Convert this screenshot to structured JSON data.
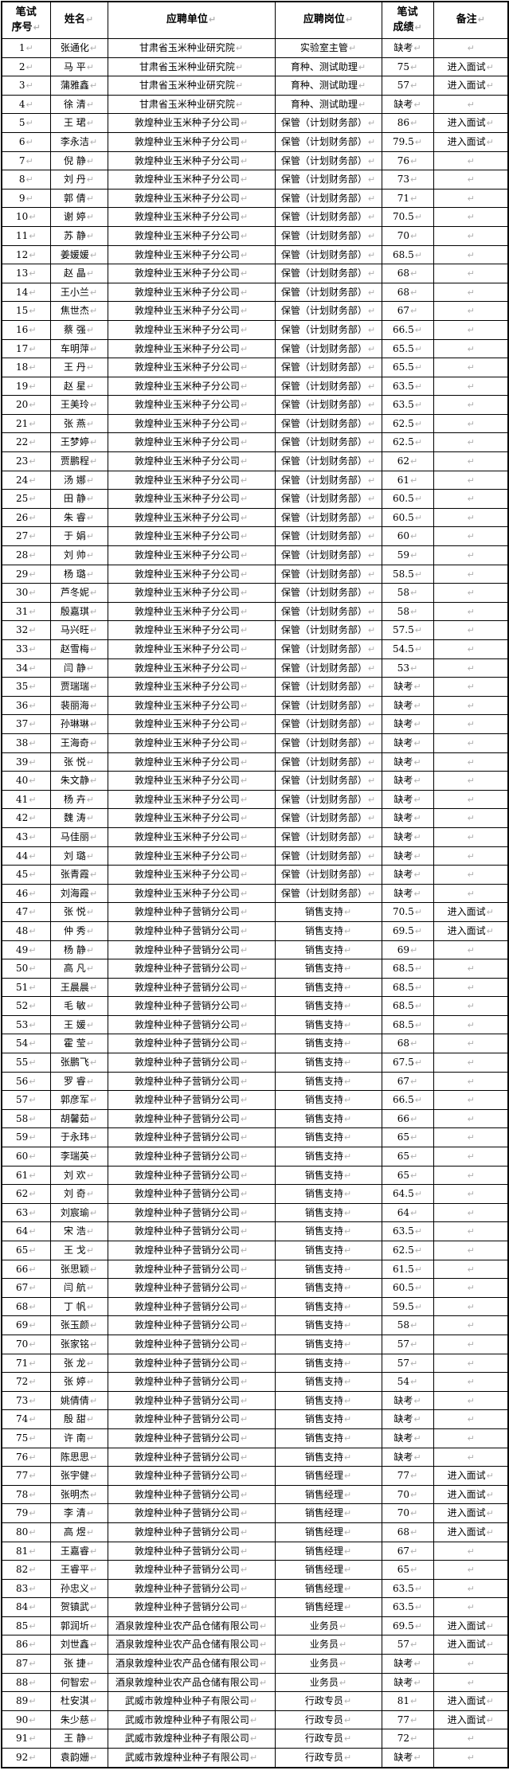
{
  "table": {
    "paragraph_mark": "↵",
    "headers": [
      "笔试\n序号",
      "姓名",
      "应聘单位",
      "应聘岗位",
      "笔试\n成绩",
      "备注"
    ],
    "column_names": [
      "cell-exam-number",
      "cell-name",
      "cell-unit",
      "cell-position",
      "cell-score",
      "cell-remark"
    ],
    "colors": {
      "border": "#000000",
      "text": "#000000",
      "paragraph_mark": "#b0b0b0",
      "background": "#ffffff"
    },
    "rows": [
      [
        "1",
        "张通化",
        "甘肃省玉米种业研究院",
        "实验室主管",
        "缺考",
        ""
      ],
      [
        "2",
        "马 平",
        "甘肃省玉米种业研究院",
        "育种、测试助理",
        "75",
        "进入面试"
      ],
      [
        "3",
        "蒲雅鑫",
        "甘肃省玉米种业研究院",
        "育种、测试助理",
        "57",
        "进入面试"
      ],
      [
        "4",
        "徐 清",
        "甘肃省玉米种业研究院",
        "育种、测试助理",
        "缺考",
        ""
      ],
      [
        "5",
        "王 珺",
        "敦煌种业玉米种子分公司",
        "保管（计划财务部）",
        "86",
        "进入面试"
      ],
      [
        "6",
        "李永洁",
        "敦煌种业玉米种子分公司",
        "保管（计划财务部）",
        "79.5",
        "进入面试"
      ],
      [
        "7",
        "倪 静",
        "敦煌种业玉米种子分公司",
        "保管（计划财务部）",
        "76",
        ""
      ],
      [
        "8",
        "刘 丹",
        "敦煌种业玉米种子分公司",
        "保管（计划财务部）",
        "73",
        ""
      ],
      [
        "9",
        "郭 倩",
        "敦煌种业玉米种子分公司",
        "保管（计划财务部）",
        "71",
        ""
      ],
      [
        "10",
        "谢 婷",
        "敦煌种业玉米种子分公司",
        "保管（计划财务部）",
        "70.5",
        ""
      ],
      [
        "11",
        "苏 静",
        "敦煌种业玉米种子分公司",
        "保管（计划财务部）",
        "70",
        ""
      ],
      [
        "12",
        "姜媛媛",
        "敦煌种业玉米种子分公司",
        "保管（计划财务部）",
        "68.5",
        ""
      ],
      [
        "13",
        "赵 晶",
        "敦煌种业玉米种子分公司",
        "保管（计划财务部）",
        "68",
        ""
      ],
      [
        "14",
        "王小兰",
        "敦煌种业玉米种子分公司",
        "保管（计划财务部）",
        "68",
        ""
      ],
      [
        "15",
        "焦世杰",
        "敦煌种业玉米种子分公司",
        "保管（计划财务部）",
        "67",
        ""
      ],
      [
        "16",
        "蔡 强",
        "敦煌种业玉米种子分公司",
        "保管（计划财务部）",
        "66.5",
        ""
      ],
      [
        "17",
        "车明萍",
        "敦煌种业玉米种子分公司",
        "保管（计划财务部）",
        "65.5",
        ""
      ],
      [
        "18",
        "王 丹",
        "敦煌种业玉米种子分公司",
        "保管（计划财务部）",
        "65.5",
        ""
      ],
      [
        "19",
        "赵 星",
        "敦煌种业玉米种子分公司",
        "保管（计划财务部）",
        "63.5",
        ""
      ],
      [
        "20",
        "王美玲",
        "敦煌种业玉米种子分公司",
        "保管（计划财务部）",
        "63.5",
        ""
      ],
      [
        "21",
        "张 燕",
        "敦煌种业玉米种子分公司",
        "保管（计划财务部）",
        "62.5",
        ""
      ],
      [
        "22",
        "王梦婷",
        "敦煌种业玉米种子分公司",
        "保管（计划财务部）",
        "62.5",
        ""
      ],
      [
        "23",
        "贾鹏程",
        "敦煌种业玉米种子分公司",
        "保管（计划财务部）",
        "62",
        ""
      ],
      [
        "24",
        "汤 娜",
        "敦煌种业玉米种子分公司",
        "保管（计划财务部）",
        "61",
        ""
      ],
      [
        "25",
        "田 静",
        "敦煌种业玉米种子分公司",
        "保管（计划财务部）",
        "60.5",
        ""
      ],
      [
        "26",
        "朱 睿",
        "敦煌种业玉米种子分公司",
        "保管（计划财务部）",
        "60.5",
        ""
      ],
      [
        "27",
        "于 娟",
        "敦煌种业玉米种子分公司",
        "保管（计划财务部）",
        "60",
        ""
      ],
      [
        "28",
        "刘 帅",
        "敦煌种业玉米种子分公司",
        "保管（计划财务部）",
        "59",
        ""
      ],
      [
        "29",
        "杨 璐",
        "敦煌种业玉米种子分公司",
        "保管（计划财务部）",
        "58.5",
        ""
      ],
      [
        "30",
        "芦冬妮",
        "敦煌种业玉米种子分公司",
        "保管（计划财务部）",
        "58",
        ""
      ],
      [
        "31",
        "殷嘉琪",
        "敦煌种业玉米种子分公司",
        "保管（计划财务部）",
        "58",
        ""
      ],
      [
        "32",
        "马兴旺",
        "敦煌种业玉米种子分公司",
        "保管（计划财务部）",
        "57.5",
        ""
      ],
      [
        "33",
        "赵雪梅",
        "敦煌种业玉米种子分公司",
        "保管（计划财务部）",
        "54.5",
        ""
      ],
      [
        "34",
        "闫 静",
        "敦煌种业玉米种子分公司",
        "保管（计划财务部）",
        "53",
        ""
      ],
      [
        "35",
        "贾瑞瑞",
        "敦煌种业玉米种子分公司",
        "保管（计划财务部）",
        "缺考",
        ""
      ],
      [
        "36",
        "裴丽海",
        "敦煌种业玉米种子分公司",
        "保管（计划财务部）",
        "缺考",
        ""
      ],
      [
        "37",
        "孙琳琳",
        "敦煌种业玉米种子分公司",
        "保管（计划财务部）",
        "缺考",
        ""
      ],
      [
        "38",
        "王海奇",
        "敦煌种业玉米种子分公司",
        "保管（计划财务部）",
        "缺考",
        ""
      ],
      [
        "39",
        "张 悦",
        "敦煌种业玉米种子分公司",
        "保管（计划财务部）",
        "缺考",
        ""
      ],
      [
        "40",
        "朱文静",
        "敦煌种业玉米种子分公司",
        "保管（计划财务部）",
        "缺考",
        ""
      ],
      [
        "41",
        "杨 卉",
        "敦煌种业玉米种子分公司",
        "保管（计划财务部）",
        "缺考",
        ""
      ],
      [
        "42",
        "魏 涛",
        "敦煌种业玉米种子分公司",
        "保管（计划财务部）",
        "缺考",
        ""
      ],
      [
        "43",
        "马佳丽",
        "敦煌种业玉米种子分公司",
        "保管（计划财务部）",
        "缺考",
        ""
      ],
      [
        "44",
        "刘 璐",
        "敦煌种业玉米种子分公司",
        "保管（计划财务部）",
        "缺考",
        ""
      ],
      [
        "45",
        "张青霞",
        "敦煌种业玉米种子分公司",
        "保管（计划财务部）",
        "缺考",
        ""
      ],
      [
        "46",
        "刘海霞",
        "敦煌种业玉米种子分公司",
        "保管（计划财务部）",
        "缺考",
        ""
      ],
      [
        "47",
        "张 悦",
        "敦煌种业种子营销分公司",
        "销售支持",
        "70.5",
        "进入面试"
      ],
      [
        "48",
        "仲 秀",
        "敦煌种业种子营销分公司",
        "销售支持",
        "69.5",
        "进入面试"
      ],
      [
        "49",
        "杨 静",
        "敦煌种业种子营销分公司",
        "销售支持",
        "69",
        ""
      ],
      [
        "50",
        "高 凡",
        "敦煌种业种子营销分公司",
        "销售支持",
        "68.5",
        ""
      ],
      [
        "51",
        "王晨晨",
        "敦煌种业种子营销分公司",
        "销售支持",
        "68.5",
        ""
      ],
      [
        "52",
        "毛 敏",
        "敦煌种业种子营销分公司",
        "销售支持",
        "68.5",
        ""
      ],
      [
        "53",
        "王 媛",
        "敦煌种业种子营销分公司",
        "销售支持",
        "68.5",
        ""
      ],
      [
        "54",
        "霍 莹",
        "敦煌种业种子营销分公司",
        "销售支持",
        "68",
        ""
      ],
      [
        "55",
        "张鹏飞",
        "敦煌种业种子营销分公司",
        "销售支持",
        "67.5",
        ""
      ],
      [
        "56",
        "罗 睿",
        "敦煌种业种子营销分公司",
        "销售支持",
        "67",
        ""
      ],
      [
        "57",
        "郭彦军",
        "敦煌种业种子营销分公司",
        "销售支持",
        "66.5",
        ""
      ],
      [
        "58",
        "胡馨茹",
        "敦煌种业种子营销分公司",
        "销售支持",
        "66",
        ""
      ],
      [
        "59",
        "于永玮",
        "敦煌种业种子营销分公司",
        "销售支持",
        "65",
        ""
      ],
      [
        "60",
        "李瑞英",
        "敦煌种业种子营销分公司",
        "销售支持",
        "65",
        ""
      ],
      [
        "61",
        "刘 欢",
        "敦煌种业种子营销分公司",
        "销售支持",
        "65",
        ""
      ],
      [
        "62",
        "刘 奇",
        "敦煌种业种子营销分公司",
        "销售支持",
        "64.5",
        ""
      ],
      [
        "63",
        "刘宸瑜",
        "敦煌种业种子营销分公司",
        "销售支持",
        "64",
        ""
      ],
      [
        "64",
        "宋 浩",
        "敦煌种业种子营销分公司",
        "销售支持",
        "63.5",
        ""
      ],
      [
        "65",
        "王 戈",
        "敦煌种业种子营销分公司",
        "销售支持",
        "62.5",
        ""
      ],
      [
        "66",
        "张思颖",
        "敦煌种业种子营销分公司",
        "销售支持",
        "61.5",
        ""
      ],
      [
        "67",
        "闫 航",
        "敦煌种业种子营销分公司",
        "销售支持",
        "60.5",
        ""
      ],
      [
        "68",
        "丁 帆",
        "敦煌种业种子营销分公司",
        "销售支持",
        "59.5",
        ""
      ],
      [
        "69",
        "张玉颜",
        "敦煌种业种子营销分公司",
        "销售支持",
        "58",
        ""
      ],
      [
        "70",
        "张家铭",
        "敦煌种业种子营销分公司",
        "销售支持",
        "57",
        ""
      ],
      [
        "71",
        "张 龙",
        "敦煌种业种子营销分公司",
        "销售支持",
        "57",
        ""
      ],
      [
        "72",
        "张 婷",
        "敦煌种业种子营销分公司",
        "销售支持",
        "54",
        ""
      ],
      [
        "73",
        "姚倩倩",
        "敦煌种业种子营销分公司",
        "销售支持",
        "缺考",
        ""
      ],
      [
        "74",
        "殷 甜",
        "敦煌种业种子营销分公司",
        "销售支持",
        "缺考",
        ""
      ],
      [
        "75",
        "许 南",
        "敦煌种业种子营销分公司",
        "销售支持",
        "缺考",
        ""
      ],
      [
        "76",
        "陈思思",
        "敦煌种业种子营销分公司",
        "销售支持",
        "缺考",
        ""
      ],
      [
        "77",
        "张宇健",
        "敦煌种业种子营销分公司",
        "销售经理",
        "77",
        "进入面试"
      ],
      [
        "78",
        "张明杰",
        "敦煌种业种子营销分公司",
        "销售经理",
        "70",
        "进入面试"
      ],
      [
        "79",
        "李 清",
        "敦煌种业种子营销分公司",
        "销售经理",
        "70",
        "进入面试"
      ],
      [
        "80",
        "高 煜",
        "敦煌种业种子营销分公司",
        "销售经理",
        "68",
        "进入面试"
      ],
      [
        "81",
        "王嘉睿",
        "敦煌种业种子营销分公司",
        "销售经理",
        "67",
        ""
      ],
      [
        "82",
        "王睿平",
        "敦煌种业种子营销分公司",
        "销售经理",
        "65",
        ""
      ],
      [
        "83",
        "孙忠义",
        "敦煌种业种子营销分公司",
        "销售经理",
        "63.5",
        ""
      ],
      [
        "84",
        "贺镇武",
        "敦煌种业种子营销分公司",
        "销售经理",
        "63.5",
        ""
      ],
      [
        "85",
        "郭润圻",
        "酒泉敦煌种业农产品仓储有限公司",
        "业务员",
        "69.5",
        "进入面试"
      ],
      [
        "86",
        "刘世鑫",
        "酒泉敦煌种业农产品仓储有限公司",
        "业务员",
        "57",
        "进入面试"
      ],
      [
        "87",
        "张 捷",
        "酒泉敦煌种业农产品仓储有限公司",
        "业务员",
        "缺考",
        ""
      ],
      [
        "88",
        "何智宏",
        "酒泉敦煌种业农产品仓储有限公司",
        "业务员",
        "缺考",
        ""
      ],
      [
        "89",
        "杜安淇",
        "武威市敦煌种业种子有限公司",
        "行政专员",
        "81",
        "进入面试"
      ],
      [
        "90",
        "朱少慈",
        "武威市敦煌种业种子有限公司",
        "行政专员",
        "77",
        "进入面试"
      ],
      [
        "91",
        "王 静",
        "武威市敦煌种业种子有限公司",
        "行政专员",
        "72",
        ""
      ],
      [
        "92",
        "袁韵姗",
        "武威市敦煌种业种子有限公司",
        "行政专员",
        "缺考",
        ""
      ]
    ]
  }
}
